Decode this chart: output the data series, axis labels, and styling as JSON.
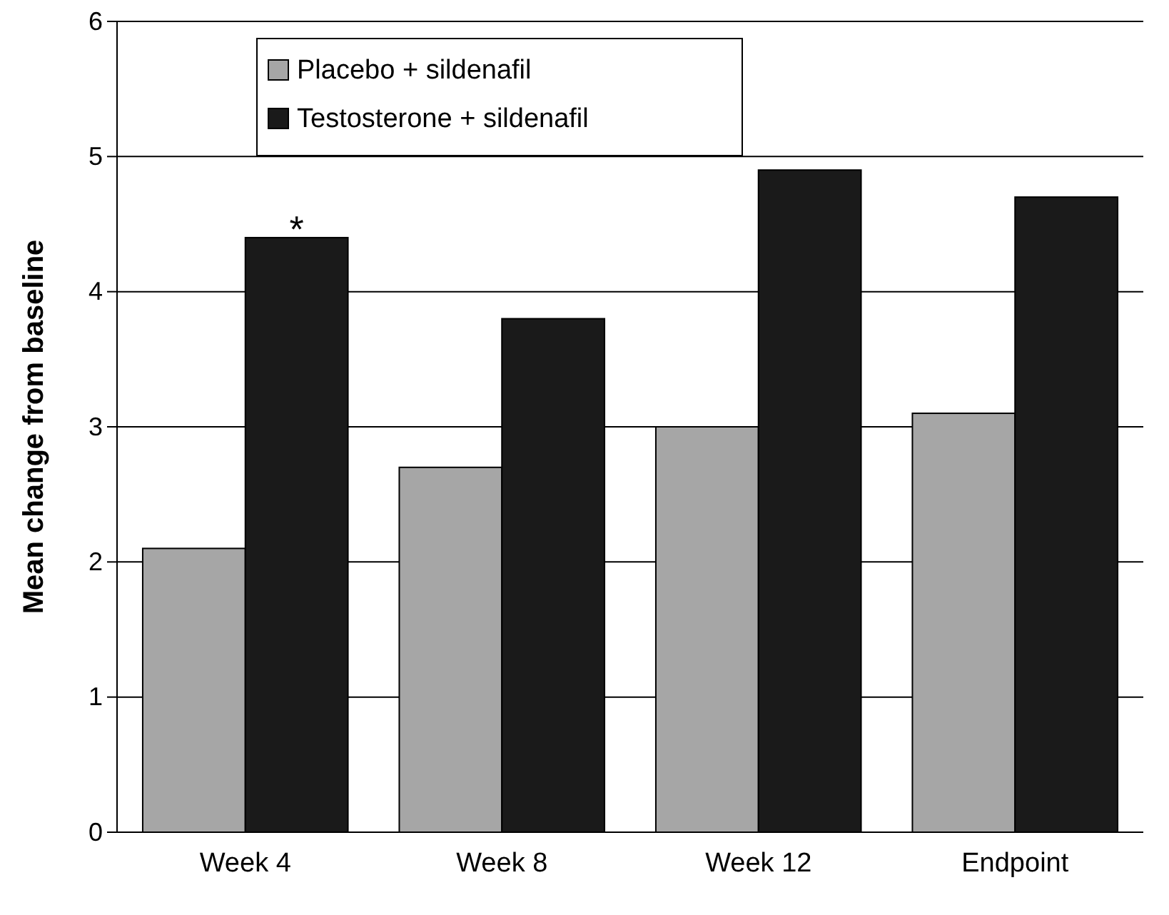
{
  "chart_data": {
    "type": "bar",
    "ylabel": "Mean change from baseline",
    "categories": [
      "Week 4",
      "Week 8",
      "Week 12",
      "Endpoint"
    ],
    "series": [
      {
        "name": "Placebo + sildenafil",
        "color": "#a6a6a6",
        "values": [
          2.1,
          2.7,
          3.0,
          3.1
        ]
      },
      {
        "name": "Testosterone + sildenafil",
        "color": "#1a1a1a",
        "values": [
          4.4,
          3.8,
          4.9,
          4.7
        ]
      }
    ],
    "ylim": [
      0,
      6
    ],
    "yticks": [
      0,
      1,
      2,
      3,
      4,
      5,
      6
    ],
    "grid": "y",
    "legend": "top left",
    "annotations": [
      {
        "text": "*",
        "x": "Week 4",
        "y": 4.4
      }
    ]
  }
}
